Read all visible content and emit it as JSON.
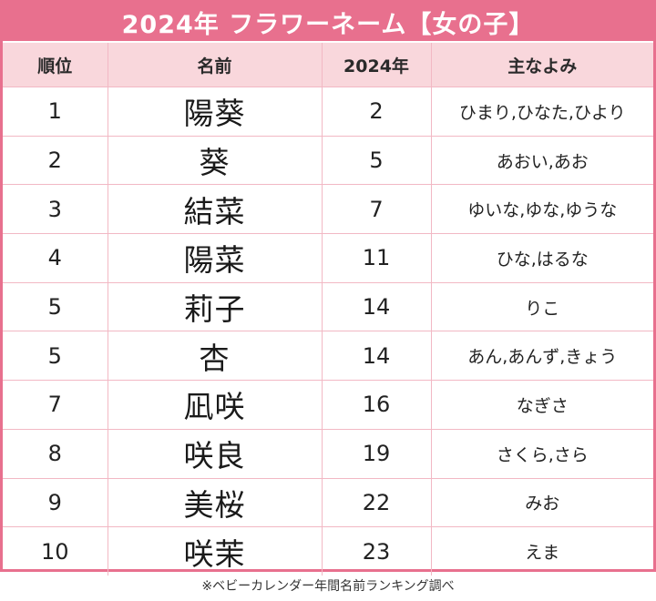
{
  "title": "2024年 フラワーネーム【女の子】",
  "table": {
    "headers": [
      "順位",
      "名前",
      "2024年",
      "主なよみ"
    ],
    "rows": [
      {
        "rank": "1",
        "name": "陽葵",
        "year": "2",
        "reading": "ひまり,ひなた,ひより"
      },
      {
        "rank": "2",
        "name": "葵",
        "year": "5",
        "reading": "あおい,あお"
      },
      {
        "rank": "3",
        "name": "結菜",
        "year": "7",
        "reading": "ゆいな,ゆな,ゆうな"
      },
      {
        "rank": "4",
        "name": "陽菜",
        "year": "11",
        "reading": "ひな,はるな"
      },
      {
        "rank": "5",
        "name": "莉子",
        "year": "14",
        "reading": "りこ"
      },
      {
        "rank": "5",
        "name": "杏",
        "year": "14",
        "reading": "あん,あんず,きょう"
      },
      {
        "rank": "7",
        "name": "凪咲",
        "year": "16",
        "reading": "なぎさ"
      },
      {
        "rank": "8",
        "name": "咲良",
        "year": "19",
        "reading": "さくら,さら"
      },
      {
        "rank": "9",
        "name": "美桜",
        "year": "22",
        "reading": "みお"
      },
      {
        "rank": "10",
        "name": "咲茉",
        "year": "23",
        "reading": "えま"
      }
    ]
  },
  "footnote": "※ベビーカレンダー年間名前ランキング調べ",
  "colors": {
    "accent": "#e8708e",
    "header_bg": "#f9d7dc",
    "grid": "#f2b8c4"
  }
}
